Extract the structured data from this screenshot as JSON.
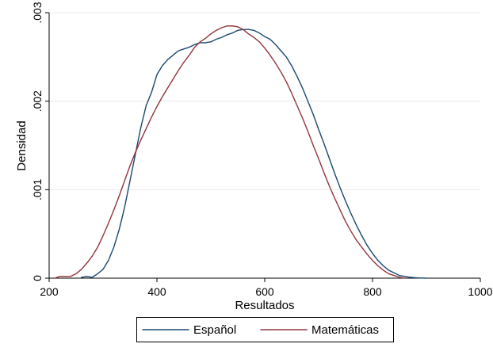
{
  "chart_data": {
    "type": "line",
    "title": "",
    "xlabel": "Resultados",
    "ylabel": "Densidad",
    "xlim": [
      200,
      1000
    ],
    "ylim": [
      0,
      0.003
    ],
    "grid": true,
    "legend_position": "bottom",
    "x_ticks": [
      200,
      400,
      600,
      800,
      1000
    ],
    "x_tick_labels": [
      "200",
      "400",
      "600",
      "800",
      "1000"
    ],
    "y_ticks": [
      0,
      0.001,
      0.002,
      0.003
    ],
    "y_tick_labels": [
      "0",
      ".001",
      ".002",
      ".003"
    ],
    "series": [
      {
        "name": "Español",
        "color": "#1a476f",
        "x": [
          260,
          270,
          280,
          290,
          300,
          310,
          320,
          330,
          340,
          350,
          360,
          370,
          380,
          390,
          400,
          410,
          420,
          430,
          440,
          450,
          460,
          470,
          480,
          490,
          500,
          510,
          520,
          530,
          540,
          550,
          560,
          570,
          580,
          590,
          600,
          610,
          620,
          630,
          640,
          650,
          660,
          670,
          680,
          690,
          700,
          710,
          720,
          730,
          740,
          750,
          760,
          770,
          780,
          790,
          800,
          810,
          820,
          830,
          840,
          850,
          860,
          870,
          880,
          890,
          900
        ],
        "y": [
          1e-05,
          2e-05,
          1e-05,
          5e-05,
          0.0001,
          0.0002,
          0.00035,
          0.00055,
          0.0008,
          0.0011,
          0.0014,
          0.0017,
          0.00195,
          0.0021,
          0.0023,
          0.0024,
          0.00247,
          0.00252,
          0.00257,
          0.00259,
          0.00261,
          0.00264,
          0.00266,
          0.00266,
          0.00267,
          0.0027,
          0.00272,
          0.00275,
          0.00277,
          0.0028,
          0.00281,
          0.00281,
          0.0028,
          0.00277,
          0.00273,
          0.0027,
          0.00264,
          0.00257,
          0.0025,
          0.0024,
          0.00228,
          0.00215,
          0.002,
          0.00185,
          0.00168,
          0.00152,
          0.00135,
          0.00118,
          0.00102,
          0.00087,
          0.00073,
          0.0006,
          0.00048,
          0.00037,
          0.00028,
          0.0002,
          0.00014,
          9e-05,
          6e-05,
          3e-05,
          2e-05,
          1e-05,
          5e-06,
          2e-06,
          0.0
        ]
      },
      {
        "name": "Matemáticas",
        "color": "#90353b",
        "x": [
          210,
          220,
          230,
          240,
          250,
          260,
          270,
          280,
          290,
          300,
          310,
          320,
          330,
          340,
          350,
          360,
          370,
          380,
          390,
          400,
          410,
          420,
          430,
          440,
          450,
          460,
          470,
          480,
          490,
          500,
          510,
          520,
          530,
          540,
          550,
          560,
          570,
          580,
          590,
          600,
          610,
          620,
          630,
          640,
          650,
          660,
          670,
          680,
          690,
          700,
          710,
          720,
          730,
          740,
          750,
          760,
          770,
          780,
          790,
          800,
          810,
          820,
          830,
          840,
          850,
          860
        ],
        "y": [
          0.0,
          2e-05,
          2e-05,
          2e-05,
          5e-05,
          0.0001,
          0.00017,
          0.00025,
          0.00035,
          0.00048,
          0.00062,
          0.00077,
          0.00093,
          0.0011,
          0.00127,
          0.00142,
          0.00156,
          0.00169,
          0.00182,
          0.00194,
          0.00205,
          0.00215,
          0.00225,
          0.00235,
          0.00244,
          0.00252,
          0.00261,
          0.00267,
          0.00271,
          0.00276,
          0.0028,
          0.00283,
          0.00285,
          0.00285,
          0.00284,
          0.00281,
          0.00276,
          0.00272,
          0.00267,
          0.0026,
          0.00252,
          0.00243,
          0.00233,
          0.00222,
          0.00209,
          0.00195,
          0.00181,
          0.00166,
          0.0015,
          0.00135,
          0.00119,
          0.00104,
          0.0009,
          0.00077,
          0.00064,
          0.00053,
          0.00043,
          0.00035,
          0.00027,
          0.0002,
          0.00014,
          9e-05,
          5e-05,
          3e-05,
          1e-05,
          0.0
        ]
      }
    ]
  }
}
